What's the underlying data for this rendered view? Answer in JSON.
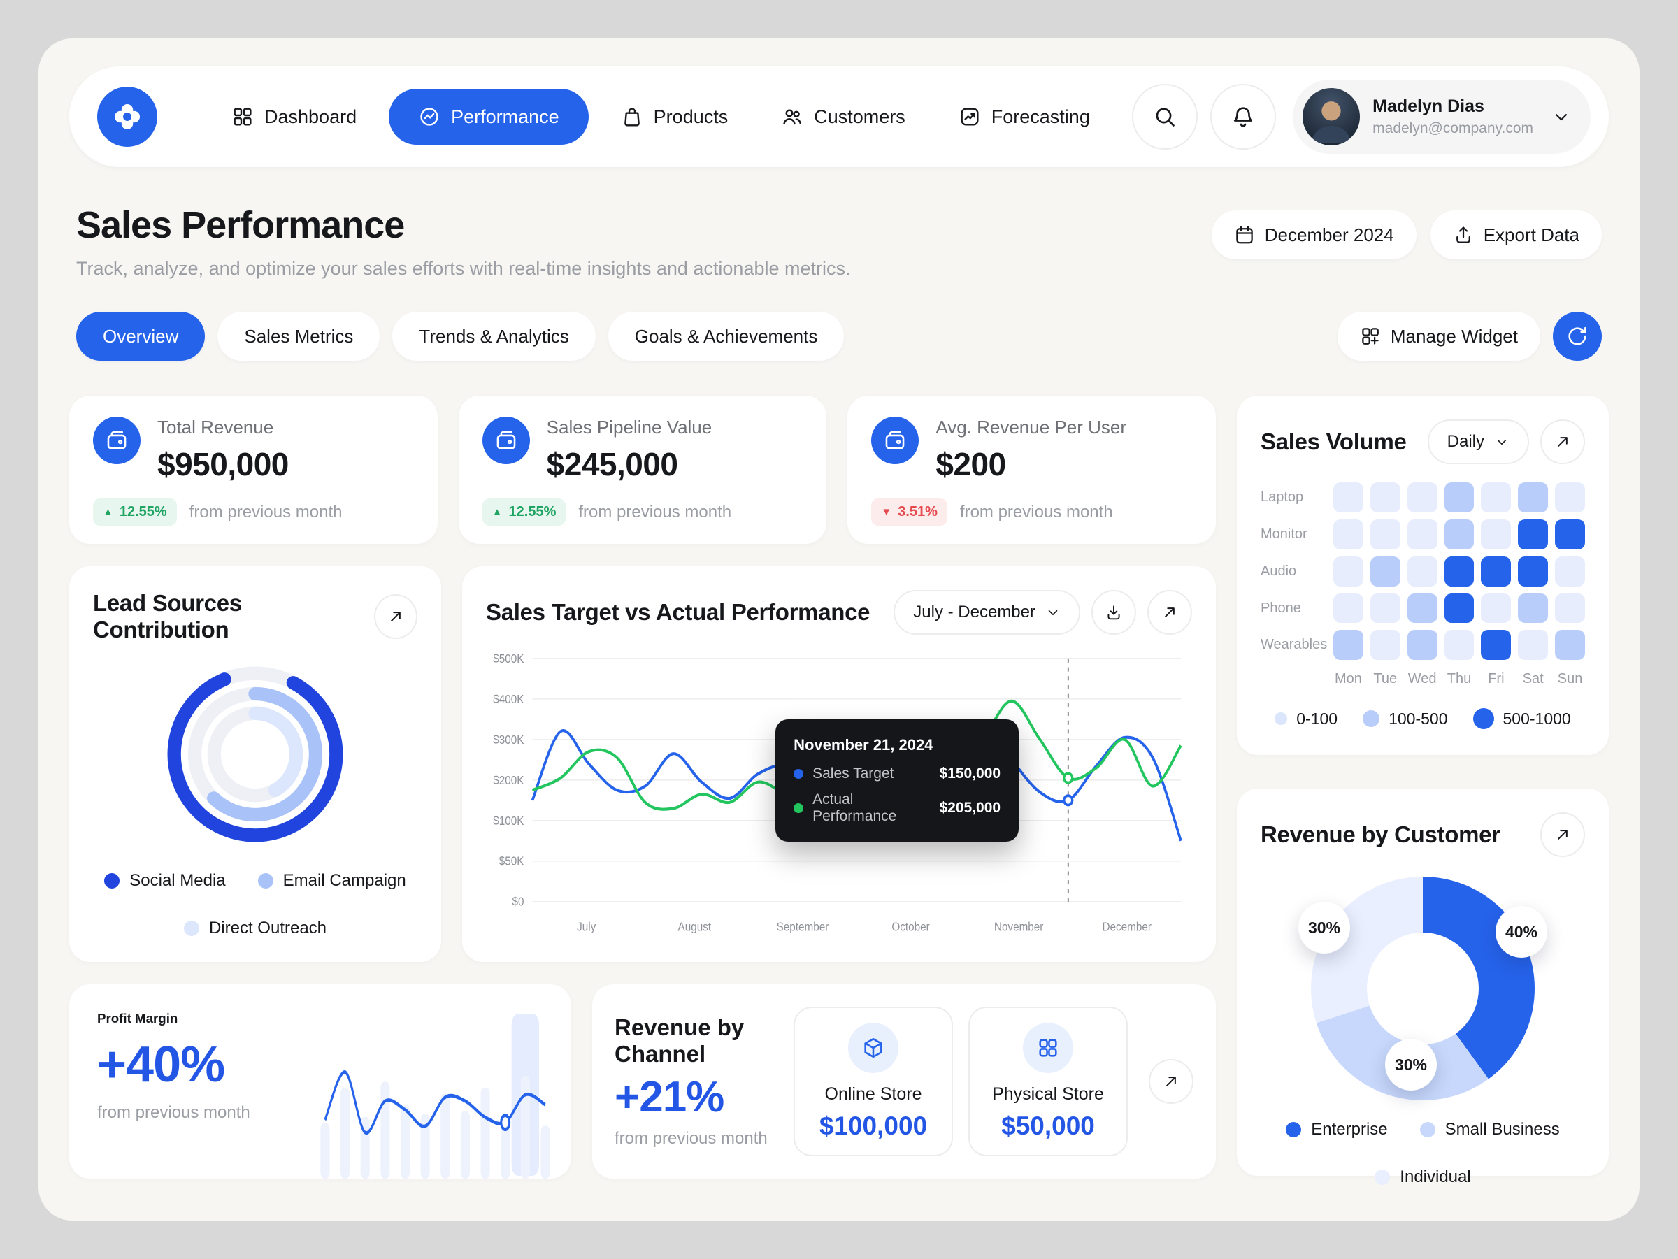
{
  "nav": {
    "items": [
      {
        "label": "Dashboard"
      },
      {
        "label": "Performance"
      },
      {
        "label": "Products"
      },
      {
        "label": "Customers"
      },
      {
        "label": "Forecasting"
      }
    ],
    "user": {
      "name": "Madelyn Dias",
      "email": "madelyn@company.com"
    }
  },
  "header": {
    "title": "Sales Performance",
    "subtitle": "Track, analyze, and optimize your sales efforts with real-time insights and actionable metrics.",
    "date_label": "December 2024",
    "export_label": "Export Data"
  },
  "tabs": {
    "items": [
      {
        "label": "Overview",
        "active": true
      },
      {
        "label": "Sales Metrics",
        "active": false
      },
      {
        "label": "Trends & Analytics",
        "active": false
      },
      {
        "label": "Goals & Achievements",
        "active": false
      }
    ],
    "manage_widget": "Manage Widget"
  },
  "kpis": [
    {
      "label": "Total Revenue",
      "value": "$950,000",
      "delta": "12.55%",
      "direction": "up",
      "note": "from previous month"
    },
    {
      "label": "Sales Pipeline Value",
      "value": "$245,000",
      "delta": "12.55%",
      "direction": "up",
      "note": "from previous month"
    },
    {
      "label": "Avg. Revenue Per User",
      "value": "$200",
      "delta": "3.51%",
      "direction": "down",
      "note": "from previous month"
    }
  ],
  "colors": {
    "primary": "#2563eb",
    "green": "#22c55e",
    "red": "#e5484d"
  },
  "chart_data": [
    {
      "id": "sales_volume",
      "type": "heatmap",
      "title": "Sales Volume",
      "period": "Daily",
      "rows": [
        "Laptop",
        "Monitor",
        "Audio",
        "Phone",
        "Wearables"
      ],
      "cols": [
        "Mon",
        "Tue",
        "Wed",
        "Thu",
        "Fri",
        "Sat",
        "Sun"
      ],
      "values": [
        [
          0,
          0,
          0,
          1,
          0,
          1,
          0
        ],
        [
          0,
          0,
          0,
          1,
          0,
          2,
          2
        ],
        [
          0,
          1,
          0,
          2,
          2,
          2,
          0
        ],
        [
          0,
          0,
          1,
          2,
          0,
          1,
          0
        ],
        [
          1,
          0,
          1,
          0,
          2,
          0,
          1
        ]
      ],
      "legend": [
        {
          "label": "0-100",
          "level": 0
        },
        {
          "label": "100-500",
          "level": 1
        },
        {
          "label": "500-1000",
          "level": 2
        }
      ]
    },
    {
      "id": "lead_sources",
      "type": "radial-rings",
      "title": "Lead Sources Contribution",
      "series": [
        {
          "name": "Social Media",
          "percent": 86,
          "color": "#2044dd"
        },
        {
          "name": "Email Campaign",
          "percent": 62,
          "color": "#a9c3f9"
        },
        {
          "name": "Direct Outreach",
          "percent": 42,
          "color": "#dce7fd"
        }
      ]
    },
    {
      "id": "sales_target",
      "type": "line",
      "title": "Sales Target vs Actual Performance",
      "period": "July - December",
      "x_months": [
        "July",
        "August",
        "September",
        "October",
        "November",
        "December"
      ],
      "y_ticks": [
        "$500K",
        "$400K",
        "$300K",
        "$200K",
        "$100K",
        "$50K",
        "$0"
      ],
      "unit": "USD thousands",
      "series": [
        {
          "name": "Sales Target",
          "color": "#2563eb",
          "values": [
            150,
            320,
            240,
            175,
            185,
            265,
            195,
            155,
            215,
            235,
            185,
            200,
            240,
            215,
            255,
            230,
            345,
            250,
            170,
            150,
            235,
            305,
            255,
            75
          ]
        },
        {
          "name": "Actual Performance",
          "color": "#22c55e",
          "values": [
            175,
            205,
            270,
            255,
            145,
            130,
            165,
            145,
            195,
            165,
            145,
            230,
            245,
            195,
            265,
            235,
            305,
            395,
            300,
            205,
            230,
            300,
            185,
            285
          ]
        }
      ],
      "marker_index": 19,
      "tooltip": {
        "date": "November 21, 2024",
        "rows": [
          {
            "label": "Sales Target",
            "value": "$150,000"
          },
          {
            "label": "Actual Performance",
            "value": "$205,000"
          }
        ]
      }
    },
    {
      "id": "profit_margin",
      "type": "sparkline",
      "title": "Profit Margin",
      "value": "+40%",
      "note": "from previous month",
      "bars": [
        38,
        62,
        42,
        66,
        50,
        44,
        58,
        46,
        62,
        40,
        70,
        36
      ],
      "line": [
        40,
        78,
        30,
        55,
        48,
        35,
        58,
        55,
        42,
        38,
        60,
        52
      ],
      "marker_index": 9,
      "highlight_index": 10
    },
    {
      "id": "revenue_by_channel",
      "type": "stat",
      "title": "Revenue by Channel",
      "value": "+21%",
      "note": "from previous month",
      "channels": [
        {
          "label": "Online Store",
          "value": "$100,000"
        },
        {
          "label": "Physical Store",
          "value": "$50,000"
        }
      ]
    },
    {
      "id": "revenue_by_customer",
      "type": "donut",
      "title": "Revenue by Customer",
      "slices": [
        {
          "label": "Enterprise",
          "percent": 40,
          "color": "#2563eb"
        },
        {
          "label": "Small Business",
          "percent": 30,
          "color": "#c7d8fc"
        },
        {
          "label": "Individual",
          "percent": 30,
          "color": "#e9effe"
        }
      ]
    }
  ]
}
